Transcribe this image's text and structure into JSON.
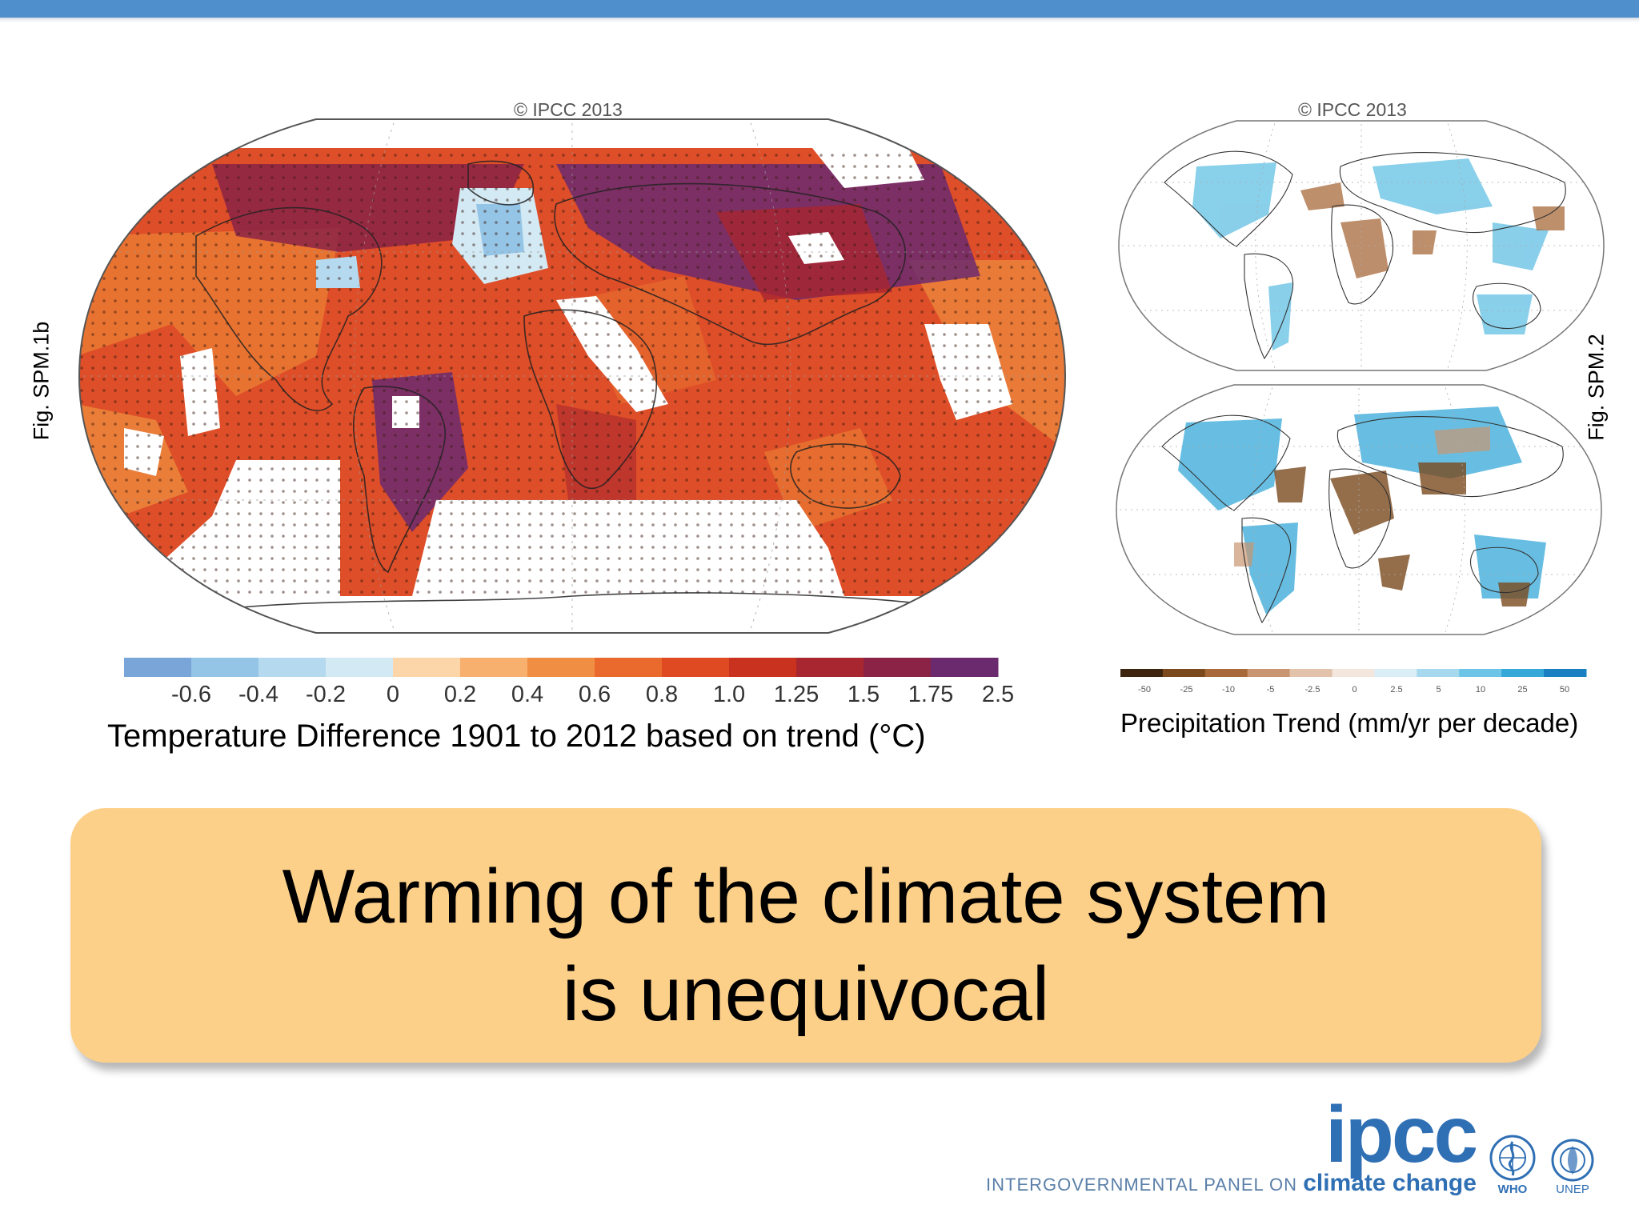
{
  "header": {
    "bar_color": "#4f8fcc"
  },
  "left_figure": {
    "copyright": "© IPCC 2013",
    "fig_label": "Fig. SPM.1b",
    "colorbar_ticks": [
      "-0.6",
      "-0.4",
      "-0.2",
      "0",
      "0.2",
      "0.4",
      "0.6",
      "0.8",
      "1.0",
      "1.25",
      "1.5",
      "1.75",
      "2.5"
    ],
    "colorbar_colors": [
      "#7aa5d8",
      "#94c4e6",
      "#b5d9ef",
      "#d3e9f4",
      "#fcd5a8",
      "#f8b06e",
      "#f08f43",
      "#e96a2c",
      "#df4a23",
      "#c8321f",
      "#a8262f",
      "#8a2346",
      "#6b2a6e"
    ],
    "label": "Temperature Difference 1901 to 2012 based on trend (°C)"
  },
  "right_figure": {
    "copyright": "© IPCC 2013",
    "fig_label": "Fig. SPM.2",
    "colorbar_ticks": [
      "-50",
      "-25",
      "-10",
      "-5",
      "-2.5",
      "0",
      "2.5",
      "5",
      "10",
      "25",
      "50"
    ],
    "colorbar_colors": [
      "#3d2510",
      "#7a4a1e",
      "#a8693a",
      "#c99572",
      "#e2c2aa",
      "#f3e6dc",
      "#d9eef6",
      "#a6d9ed",
      "#6cc4e6",
      "#35a8d8",
      "#1a80c2"
    ],
    "label": "Precipitation Trend (mm/yr per decade)"
  },
  "banner": {
    "line1": "Warming of the climate system",
    "line2": "is unequivocal",
    "color": "#fdd08a"
  },
  "footer": {
    "logo_text": "ipcc",
    "caption_prefix": "INTERGOVERNMENTAL PANEL ON",
    "caption_suffix": "climate change",
    "org_who": "WHO",
    "org_unep": "UNEP"
  }
}
